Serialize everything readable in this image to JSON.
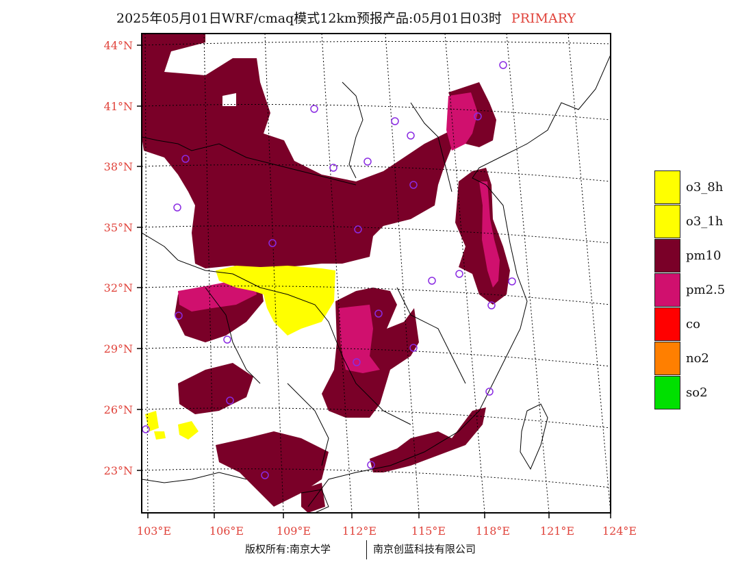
{
  "title": {
    "main": "2025年05月01日WRF/cmaq模式12km预报产品:05月01日03时",
    "tag": "PRIMARY"
  },
  "axes": {
    "lat_labels": [
      "44°N",
      "41°N",
      "38°N",
      "35°N",
      "32°N",
      "29°N",
      "26°N",
      "23°N"
    ],
    "lon_labels": [
      "103°E",
      "106°E",
      "109°E",
      "112°E",
      "115°E",
      "118°E",
      "121°E",
      "124°E"
    ]
  },
  "legend": [
    {
      "label": "o3_8h",
      "color": "#ffff00"
    },
    {
      "label": "o3_1h",
      "color": "#ffff00"
    },
    {
      "label": "pm10",
      "color": "#7a0028"
    },
    {
      "label": "pm2.5",
      "color": "#d0106e"
    },
    {
      "label": "co",
      "color": "#ff0000"
    },
    {
      "label": "no2",
      "color": "#ff7f00"
    },
    {
      "label": "so2",
      "color": "#00e000"
    }
  ],
  "credits": {
    "left": "版权所有:南京大学",
    "right": "南京创蓝科技有限公司"
  },
  "colors": {
    "pm10": "#7a0028",
    "pm25": "#d0106e",
    "o3": "#ffff00",
    "axis_label": "#e0423a",
    "station": "#8a2be2"
  }
}
